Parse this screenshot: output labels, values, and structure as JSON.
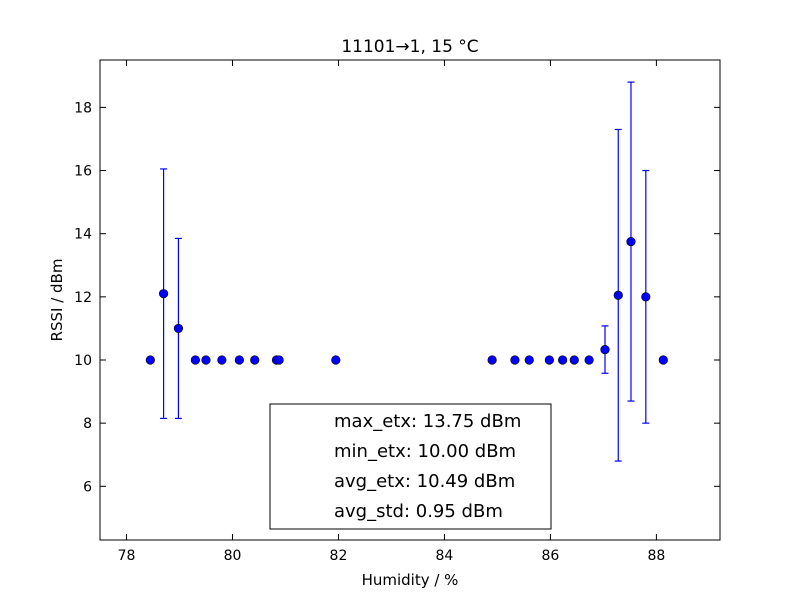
{
  "chart_data": {
    "type": "scatter",
    "title": "11101→1, 15 °C",
    "xlabel": "Humidity / %",
    "ylabel": "RSSI / dBm",
    "xlim": [
      77.5,
      89.2
    ],
    "ylim": [
      4.3,
      19.5
    ],
    "xticks": [
      78,
      80,
      82,
      84,
      86,
      88
    ],
    "yticks": [
      6,
      8,
      10,
      12,
      14,
      16,
      18
    ],
    "grid": false,
    "marker_color": "#0000ff",
    "series": [
      {
        "points": [
          {
            "x": 78.45,
            "y": 10.0,
            "err": 0
          },
          {
            "x": 78.7,
            "y": 12.1,
            "err": 3.95
          },
          {
            "x": 78.98,
            "y": 11.0,
            "err": 2.85
          },
          {
            "x": 79.3,
            "y": 10.0,
            "err": 0
          },
          {
            "x": 79.5,
            "y": 10.0,
            "err": 0
          },
          {
            "x": 79.8,
            "y": 10.0,
            "err": 0
          },
          {
            "x": 80.13,
            "y": 10.0,
            "err": 0
          },
          {
            "x": 80.42,
            "y": 10.0,
            "err": 0
          },
          {
            "x": 80.83,
            "y": 10.0,
            "err": 0
          },
          {
            "x": 80.88,
            "y": 10.0,
            "err": 0
          },
          {
            "x": 81.95,
            "y": 10.0,
            "err": 0
          },
          {
            "x": 84.9,
            "y": 10.0,
            "err": 0
          },
          {
            "x": 85.33,
            "y": 10.0,
            "err": 0
          },
          {
            "x": 85.6,
            "y": 10.0,
            "err": 0
          },
          {
            "x": 85.98,
            "y": 10.0,
            "err": 0
          },
          {
            "x": 86.23,
            "y": 10.0,
            "err": 0
          },
          {
            "x": 86.45,
            "y": 10.0,
            "err": 0
          },
          {
            "x": 86.73,
            "y": 10.0,
            "err": 0
          },
          {
            "x": 87.03,
            "y": 10.33,
            "err": 0.75
          },
          {
            "x": 87.28,
            "y": 12.05,
            "err": 5.25
          },
          {
            "x": 87.52,
            "y": 13.75,
            "err": 5.05
          },
          {
            "x": 87.8,
            "y": 12.0,
            "err": 4.0
          },
          {
            "x": 88.13,
            "y": 10.0,
            "err": 0
          }
        ]
      }
    ],
    "legend_position": "bottom-center",
    "annotation_lines": [
      "max_etx: 13.75 dBm",
      "min_etx: 10.00 dBm",
      "avg_etx: 10.49 dBm",
      "avg_std: 0.95 dBm"
    ]
  }
}
